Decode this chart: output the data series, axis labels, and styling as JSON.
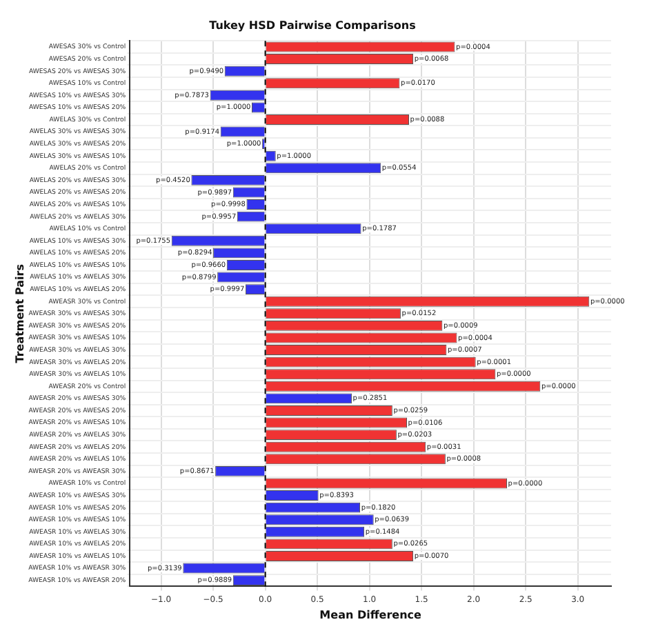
{
  "chart_data": {
    "type": "bar",
    "orientation": "horizontal",
    "title": "Tukey HSD Pairwise Comparisons",
    "xlabel": "Mean Difference",
    "ylabel": "Treatment Pairs",
    "categories": [
      "AWESAS 30% vs Control",
      "AWESAS 20% vs Control",
      "AWESAS 20% vs AWESAS 30%",
      "AWESAS 10% vs Control",
      "AWESAS 10% vs AWESAS 30%",
      "AWESAS 10% vs AWESAS 20%",
      "AWELAS 30% vs Control",
      "AWELAS 30% vs AWESAS 30%",
      "AWELAS 30% vs AWESAS 20%",
      "AWELAS 30% vs AWESAS 10%",
      "AWELAS 20% vs Control",
      "AWELAS 20% vs AWESAS 30%",
      "AWELAS 20% vs AWESAS 20%",
      "AWELAS 20% vs AWESAS 10%",
      "AWELAS 20% vs AWELAS 30%",
      "AWELAS 10% vs Control",
      "AWELAS 10% vs AWESAS 30%",
      "AWELAS 10% vs AWESAS 20%",
      "AWELAS 10% vs AWESAS 10%",
      "AWELAS 10% vs AWELAS 30%",
      "AWELAS 10% vs AWELAS 20%",
      "AWEASR 30% vs Control",
      "AWEASR 30% vs AWESAS 30%",
      "AWEASR 30% vs AWESAS 20%",
      "AWEASR 30% vs AWESAS 10%",
      "AWEASR 30% vs AWELAS 30%",
      "AWEASR 30% vs AWELAS 20%",
      "AWEASR 30% vs AWELAS 10%",
      "AWEASR 20% vs Control",
      "AWEASR 20% vs AWESAS 30%",
      "AWEASR 20% vs AWESAS 20%",
      "AWEASR 20% vs AWESAS 10%",
      "AWEASR 20% vs AWELAS 30%",
      "AWEASR 20% vs AWELAS 20%",
      "AWEASR 20% vs AWELAS 10%",
      "AWEASR 20% vs AWEASR 30%",
      "AWEASR 10% vs Control",
      "AWEASR 10% vs AWESAS 30%",
      "AWEASR 10% vs AWESAS 20%",
      "AWEASR 10% vs AWESAS 10%",
      "AWEASR 10% vs AWELAS 30%",
      "AWEASR 10% vs AWELAS 20%",
      "AWEASR 10% vs AWELAS 10%",
      "AWEASR 10% vs AWEASR 30%",
      "AWEASR 10% vs AWEASR 20%"
    ],
    "values": [
      1.82,
      1.42,
      -0.39,
      1.29,
      -0.53,
      -0.13,
      1.38,
      -0.43,
      -0.03,
      0.1,
      1.11,
      -0.71,
      -0.31,
      -0.18,
      -0.27,
      0.92,
      -0.9,
      -0.5,
      -0.37,
      -0.46,
      -0.19,
      3.11,
      1.3,
      1.7,
      1.84,
      1.74,
      2.02,
      2.21,
      2.64,
      0.83,
      1.22,
      1.36,
      1.26,
      1.54,
      1.73,
      -0.48,
      2.32,
      0.51,
      0.91,
      1.04,
      0.95,
      1.22,
      1.42,
      -0.79,
      -0.31
    ],
    "colors": [
      "#f03333",
      "#f03333",
      "#3333ee",
      "#f03333",
      "#3333ee",
      "#3333ee",
      "#f03333",
      "#3333ee",
      "#3333ee",
      "#3333ee",
      "#3333ee",
      "#3333ee",
      "#3333ee",
      "#3333ee",
      "#3333ee",
      "#3333ee",
      "#3333ee",
      "#3333ee",
      "#3333ee",
      "#3333ee",
      "#3333ee",
      "#f03333",
      "#f03333",
      "#f03333",
      "#f03333",
      "#f03333",
      "#f03333",
      "#f03333",
      "#f03333",
      "#3333ee",
      "#f03333",
      "#f03333",
      "#f03333",
      "#f03333",
      "#f03333",
      "#3333ee",
      "#f03333",
      "#3333ee",
      "#3333ee",
      "#3333ee",
      "#3333ee",
      "#f03333",
      "#f03333",
      "#3333ee",
      "#3333ee"
    ],
    "annotations": [
      {
        "text": "p=0.0004",
        "x": 1.82,
        "y": "AWESAS 30% vs Control"
      },
      {
        "text": "p=0.0068",
        "x": 1.42,
        "y": "AWESAS 20% vs Control"
      },
      {
        "text": "p=0.9490",
        "x": -0.39,
        "y": "AWESAS 20% vs AWESAS 30%"
      },
      {
        "text": "p=0.0170",
        "x": 1.29,
        "y": "AWESAS 10% vs Control"
      },
      {
        "text": "p=0.7873",
        "x": -0.53,
        "y": "AWESAS 10% vs AWESAS 30%"
      },
      {
        "text": "p=1.0000",
        "x": -0.13,
        "y": "AWESAS 10% vs AWESAS 20%"
      },
      {
        "text": "p=0.0088",
        "x": 1.38,
        "y": "AWELAS 30% vs Control"
      },
      {
        "text": "p=0.9174",
        "x": -0.43,
        "y": "AWELAS 30% vs AWESAS 30%"
      },
      {
        "text": "p=1.0000",
        "x": -0.03,
        "y": "AWELAS 30% vs AWESAS 20%"
      },
      {
        "text": "p=1.0000",
        "x": 0.1,
        "y": "AWELAS 30% vs AWESAS 10%"
      },
      {
        "text": "p=0.0554",
        "x": 1.11,
        "y": "AWELAS 20% vs Control"
      },
      {
        "text": "p=0.4520",
        "x": -0.71,
        "y": "AWELAS 20% vs AWESAS 30%"
      },
      {
        "text": "p=0.9897",
        "x": -0.31,
        "y": "AWELAS 20% vs AWESAS 20%"
      },
      {
        "text": "p=0.9998",
        "x": -0.18,
        "y": "AWELAS 20% vs AWESAS 10%"
      },
      {
        "text": "p=0.9957",
        "x": -0.27,
        "y": "AWELAS 20% vs AWELAS 30%"
      },
      {
        "text": "p=0.1787",
        "x": 0.92,
        "y": "AWELAS 10% vs Control"
      },
      {
        "text": "p=0.1755",
        "x": -0.9,
        "y": "AWELAS 10% vs AWESAS 30%"
      },
      {
        "text": "p=0.8294",
        "x": -0.5,
        "y": "AWELAS 10% vs AWESAS 20%"
      },
      {
        "text": "p=0.9660",
        "x": -0.37,
        "y": "AWELAS 10% vs AWESAS 10%"
      },
      {
        "text": "p=0.8799",
        "x": -0.46,
        "y": "AWELAS 10% vs AWELAS 30%"
      },
      {
        "text": "p=0.9997",
        "x": -0.19,
        "y": "AWELAS 10% vs AWELAS 20%"
      },
      {
        "text": "p=0.0000",
        "x": 3.11,
        "y": "AWEASR 30% vs Control"
      },
      {
        "text": "p=0.0152",
        "x": 1.3,
        "y": "AWEASR 30% vs AWESAS 30%"
      },
      {
        "text": "p=0.0009",
        "x": 1.7,
        "y": "AWEASR 30% vs AWESAS 20%"
      },
      {
        "text": "p=0.0004",
        "x": 1.84,
        "y": "AWEASR 30% vs AWESAS 10%"
      },
      {
        "text": "p=0.0007",
        "x": 1.74,
        "y": "AWEASR 30% vs AWELAS 30%"
      },
      {
        "text": "p=0.0001",
        "x": 2.02,
        "y": "AWEASR 30% vs AWELAS 20%"
      },
      {
        "text": "p=0.0000",
        "x": 2.21,
        "y": "AWEASR 30% vs AWELAS 10%"
      },
      {
        "text": "p=0.0000",
        "x": 2.64,
        "y": "AWEASR 20% vs Control"
      },
      {
        "text": "p=0.2851",
        "x": 0.83,
        "y": "AWEASR 20% vs AWESAS 30%"
      },
      {
        "text": "p=0.0259",
        "x": 1.22,
        "y": "AWEASR 20% vs AWESAS 20%"
      },
      {
        "text": "p=0.0106",
        "x": 1.36,
        "y": "AWEASR 20% vs AWESAS 10%"
      },
      {
        "text": "p=0.0203",
        "x": 1.26,
        "y": "AWEASR 20% vs AWELAS 30%"
      },
      {
        "text": "p=0.0031",
        "x": 1.54,
        "y": "AWEASR 20% vs AWELAS 20%"
      },
      {
        "text": "p=0.0008",
        "x": 1.73,
        "y": "AWEASR 20% vs AWELAS 10%"
      },
      {
        "text": "p=0.8671",
        "x": -0.48,
        "y": "AWEASR 20% vs AWEASR 30%"
      },
      {
        "text": "p=0.0000",
        "x": 2.32,
        "y": "AWEASR 10% vs Control"
      },
      {
        "text": "p=0.8393",
        "x": 0.51,
        "y": "AWEASR 10% vs AWESAS 30%"
      },
      {
        "text": "p=0.1820",
        "x": 0.91,
        "y": "AWEASR 10% vs AWESAS 20%"
      },
      {
        "text": "p=0.0639",
        "x": 1.04,
        "y": "AWEASR 10% vs AWESAS 10%"
      },
      {
        "text": "p=0.1484",
        "x": 0.95,
        "y": "AWEASR 10% vs AWELAS 30%"
      },
      {
        "text": "p=0.0265",
        "x": 1.22,
        "y": "AWEASR 10% vs AWELAS 20%"
      },
      {
        "text": "p=0.0070",
        "x": 1.42,
        "y": "AWEASR 10% vs AWELAS 10%"
      },
      {
        "text": "p=0.3139",
        "x": -0.79,
        "y": "AWEASR 10% vs AWEASR 30%"
      },
      {
        "text": "p=0.9889",
        "x": -0.31,
        "y": "AWEASR 10% vs AWEASR 20%"
      }
    ],
    "xlim": [
      -1.3,
      3.32
    ],
    "xticks": [
      {
        "value": -1,
        "label": "−1.0"
      },
      {
        "value": -0.5,
        "label": "−0.5"
      },
      {
        "value": 0,
        "label": "0.0"
      },
      {
        "value": 0.5,
        "label": "0.5"
      },
      {
        "value": 1,
        "label": "1.0"
      },
      {
        "value": 1.5,
        "label": "1.5"
      },
      {
        "value": 2,
        "label": "2.0"
      },
      {
        "value": 2.5,
        "label": "2.5"
      },
      {
        "value": 3,
        "label": "3.0"
      }
    ],
    "ref_lines": [
      {
        "axis": "x",
        "value": 0,
        "color": "#000000",
        "line_style": "dashed"
      }
    ],
    "grid": true,
    "legend": false
  }
}
